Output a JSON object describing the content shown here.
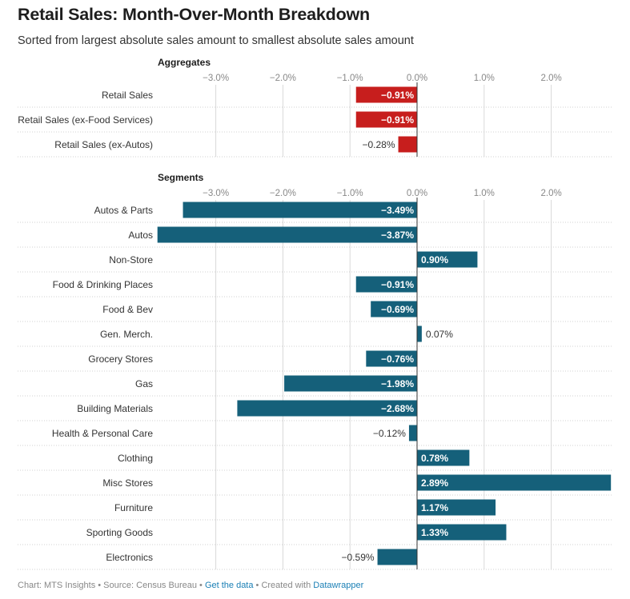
{
  "header": {
    "title": "Retail Sales: Month-Over-Month Breakdown",
    "subtitle": "Sorted from largest absolute sales amount to smallest absolute sales amount"
  },
  "footer": {
    "chart_by": "Chart: MTS Insights",
    "separator": " • ",
    "source": "Source: Census Bureau",
    "get_data": "Get the data",
    "created_with": "Created with",
    "datawrapper": "Datawrapper"
  },
  "colors": {
    "aggregate_bar": "#c71e1d",
    "segment_bar": "#15607a",
    "gridline": "#d9d9d9",
    "tick_text": "#888888"
  },
  "chart_data": [
    {
      "type": "bar",
      "orientation": "horizontal",
      "title": "Aggregates",
      "unit": "%",
      "xlim": [
        -3.5,
        2.9
      ],
      "xticks": [
        -3.0,
        -2.0,
        -1.0,
        0.0,
        1.0,
        2.0
      ],
      "xtick_labels": [
        "−3.0%",
        "−2.0%",
        "−1.0%",
        "0.0%",
        "1.0%",
        "2.0%"
      ],
      "categories": [
        "Retail Sales",
        "Retail Sales (ex-Food Services)",
        "Retail Sales (ex-Autos)"
      ],
      "values": [
        -0.91,
        -0.91,
        -0.28
      ],
      "value_labels": [
        "−0.91%",
        "−0.91%",
        "−0.28%"
      ]
    },
    {
      "type": "bar",
      "orientation": "horizontal",
      "title": "Segments",
      "unit": "%",
      "xlim": [
        -3.87,
        2.89
      ],
      "xticks": [
        -3.0,
        -2.0,
        -1.0,
        0.0,
        1.0,
        2.0
      ],
      "xtick_labels": [
        "−3.0%",
        "−2.0%",
        "−1.0%",
        "0.0%",
        "1.0%",
        "2.0%"
      ],
      "categories": [
        "Autos & Parts",
        "Autos",
        "Non-Store",
        "Food & Drinking Places",
        "Food & Bev",
        "Gen. Merch.",
        "Grocery Stores",
        "Gas",
        "Building Materials",
        "Health & Personal Care",
        "Clothing",
        "Misc Stores",
        "Furniture",
        "Sporting Goods",
        "Electronics"
      ],
      "values": [
        -3.49,
        -3.87,
        0.9,
        -0.91,
        -0.69,
        0.07,
        -0.76,
        -1.98,
        -2.68,
        -0.12,
        0.78,
        2.89,
        1.17,
        1.33,
        -0.59
      ],
      "value_labels": [
        "−3.49%",
        "−3.87%",
        "0.90%",
        "−0.91%",
        "−0.69%",
        "0.07%",
        "−0.76%",
        "−1.98%",
        "−2.68%",
        "−0.12%",
        "0.78%",
        "2.89%",
        "1.17%",
        "1.33%",
        "−0.59%"
      ]
    }
  ]
}
